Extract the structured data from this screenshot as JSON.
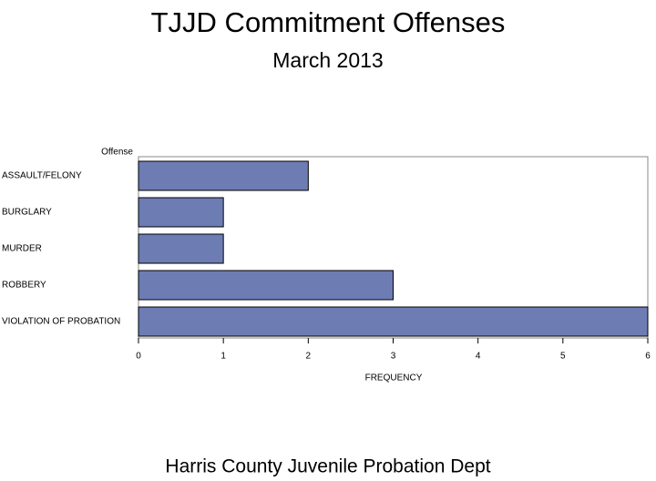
{
  "chart_data": {
    "type": "bar",
    "orientation": "horizontal",
    "title": "TJJD Commitment Offenses",
    "subtitle": "March 2013",
    "footnote": "Harris County Juvenile Probation Dept",
    "y_label": "Offense",
    "x_label": "FREQUENCY",
    "categories": [
      "ASSAULT/FELONY",
      "BURGLARY",
      "MURDER",
      "ROBBERY",
      "VIOLATION OF PROBATION"
    ],
    "values": [
      2,
      1,
      1,
      3,
      6
    ],
    "color": "#6e7cb4",
    "xlim": [
      0,
      6
    ],
    "xticks": [
      0,
      1,
      2,
      3,
      4,
      5,
      6
    ]
  }
}
